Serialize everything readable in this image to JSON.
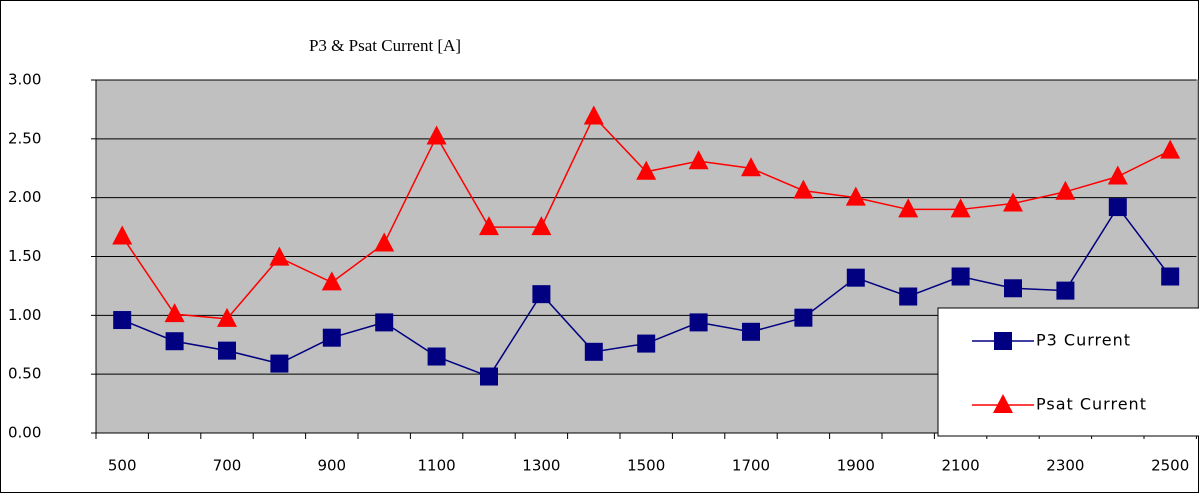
{
  "chart_data": {
    "type": "line",
    "title": "P3 & Psat Current [A]",
    "categories": [
      500,
      null,
      700,
      null,
      900,
      null,
      1100,
      null,
      1300,
      null,
      1500,
      null,
      1700,
      null,
      1900,
      null,
      2100,
      null,
      2300,
      null,
      2500
    ],
    "series": [
      {
        "name": "P3 Current",
        "color": "#000080",
        "marker": "square",
        "values": [
          0.96,
          0.78,
          0.7,
          0.59,
          0.81,
          0.94,
          0.65,
          0.48,
          1.18,
          0.69,
          0.76,
          0.94,
          0.86,
          0.98,
          1.32,
          1.16,
          1.33,
          1.23,
          1.21,
          1.92,
          1.33
        ]
      },
      {
        "name": "Psat Current",
        "color": "#ff0000",
        "marker": "triangle",
        "values": [
          1.67,
          1.01,
          0.97,
          1.49,
          1.28,
          1.61,
          2.52,
          1.75,
          1.75,
          2.69,
          2.22,
          2.31,
          2.25,
          2.06,
          2.0,
          1.9,
          1.9,
          1.95,
          2.05,
          2.18,
          2.4
        ]
      }
    ],
    "ylim": [
      0,
      3
    ],
    "yticks": [
      {
        "value": 0,
        "label": "0.00"
      },
      {
        "value": 0.5,
        "label": "0.50"
      },
      {
        "value": 1,
        "label": "1.00"
      },
      {
        "value": 1.5,
        "label": "1.50"
      },
      {
        "value": 2,
        "label": "2.00"
      },
      {
        "value": 2.5,
        "label": "2.50"
      },
      {
        "value": 3,
        "label": "3.00"
      }
    ],
    "grid": true,
    "legend": "lower right"
  }
}
